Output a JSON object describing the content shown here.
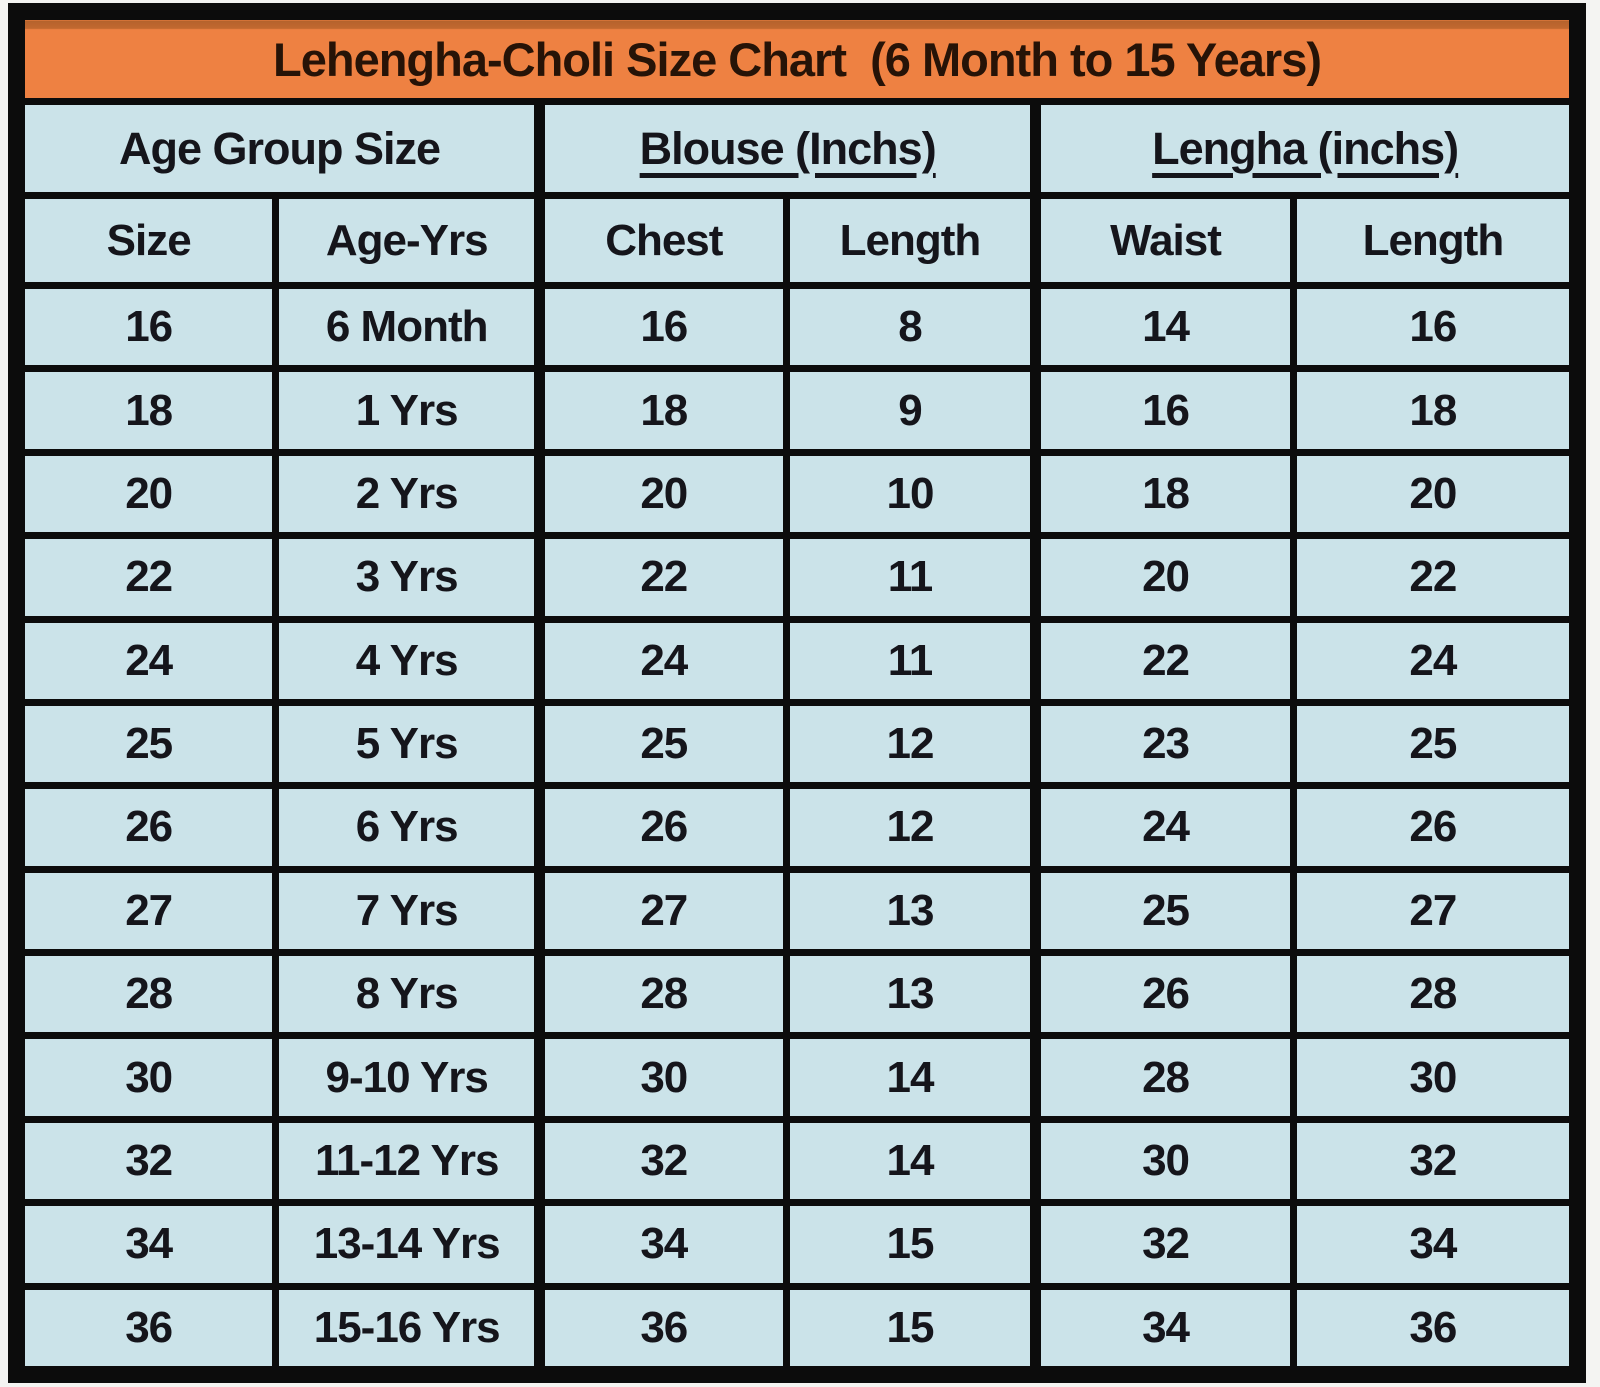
{
  "colors": {
    "title_bg": "#ee8142",
    "title_bg_dark": "#b5622c",
    "cell_bg": "#cbe3e9",
    "border": "#0c0c0c",
    "title_text": "#261307",
    "cell_text": "#15151b"
  },
  "chart_data": {
    "type": "table",
    "title": "Lehengha-Choli Size Chart  (6 Month to 15 Years)",
    "column_groups": [
      {
        "label": "Age Group Size",
        "span": 2,
        "underline": false
      },
      {
        "label": "Blouse (Inchs)",
        "span": 2,
        "underline": true
      },
      {
        "label": "Lengha (inchs)",
        "span": 2,
        "underline": true
      }
    ],
    "columns": [
      "Size",
      "Age-Yrs",
      "Chest",
      "Length",
      "Waist",
      "Length"
    ],
    "rows": [
      [
        "16",
        "6 Month",
        "16",
        "8",
        "14",
        "16"
      ],
      [
        "18",
        "1 Yrs",
        "18",
        "9",
        "16",
        "18"
      ],
      [
        "20",
        "2 Yrs",
        "20",
        "10",
        "18",
        "20"
      ],
      [
        "22",
        "3 Yrs",
        "22",
        "11",
        "20",
        "22"
      ],
      [
        "24",
        "4 Yrs",
        "24",
        "11",
        "22",
        "24"
      ],
      [
        "25",
        "5 Yrs",
        "25",
        "12",
        "23",
        "25"
      ],
      [
        "26",
        "6 Yrs",
        "26",
        "12",
        "24",
        "26"
      ],
      [
        "27",
        "7 Yrs",
        "27",
        "13",
        "25",
        "27"
      ],
      [
        "28",
        "8 Yrs",
        "28",
        "13",
        "26",
        "28"
      ],
      [
        "30",
        "9-10 Yrs",
        "30",
        "14",
        "28",
        "30"
      ],
      [
        "32",
        "11-12 Yrs",
        "32",
        "14",
        "30",
        "32"
      ],
      [
        "34",
        "13-14 Yrs",
        "34",
        "15",
        "32",
        "34"
      ],
      [
        "36",
        "15-16 Yrs",
        "36",
        "15",
        "34",
        "36"
      ]
    ],
    "layout": {
      "grid": true,
      "header_rows": 3,
      "data_rows": 13,
      "columns_count": 6
    }
  }
}
